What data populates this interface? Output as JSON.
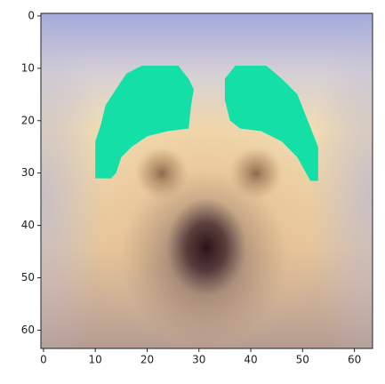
{
  "chart_data": {
    "type": "image",
    "xlim": [
      -0.5,
      63.5
    ],
    "ylim": [
      63.5,
      -0.5
    ],
    "xticks": [
      0,
      10,
      20,
      30,
      40,
      50,
      60
    ],
    "yticks": [
      0,
      10,
      20,
      30,
      40,
      50,
      60
    ]
  }
}
